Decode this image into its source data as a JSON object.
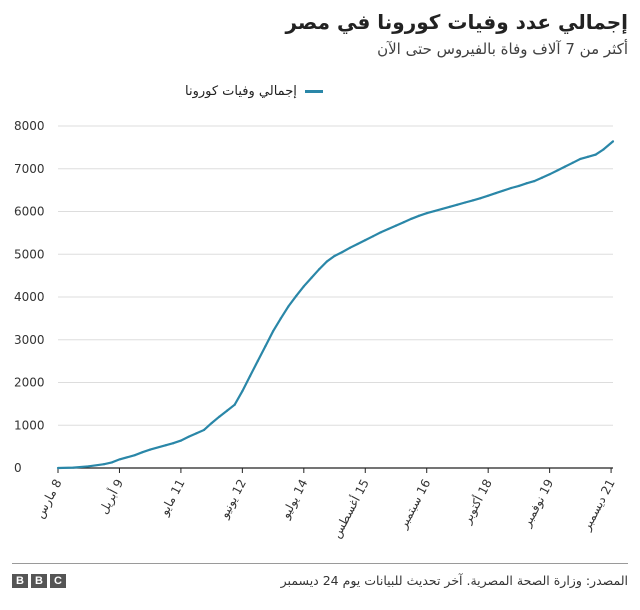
{
  "header": {
    "title": "إجمالي عدد وفيات كورونا في مصر",
    "subtitle": "أكثر من 7 آلاف وفاة بالفيروس حتى الآن"
  },
  "legend": {
    "label": "إجمالي وفيات كورونا"
  },
  "colors": {
    "series": "#2a87a8",
    "axis": "#222222",
    "grid": "#dddddd",
    "logo": "#555555"
  },
  "chart_data": {
    "type": "line",
    "title": "إجمالي عدد وفيات كورونا في مصر",
    "xlabel": "",
    "ylabel": "",
    "ylim": [
      0,
      8000
    ],
    "xlim": [
      0,
      289
    ],
    "yticks": [
      0,
      1000,
      2000,
      3000,
      4000,
      5000,
      6000,
      7000,
      8000
    ],
    "xticks": [
      {
        "day": 0,
        "label": "8 مارس"
      },
      {
        "day": 32,
        "label": "9 أبريل"
      },
      {
        "day": 64,
        "label": "11 مايو"
      },
      {
        "day": 96,
        "label": "12 يونيو"
      },
      {
        "day": 128,
        "label": "14 يوليو"
      },
      {
        "day": 160,
        "label": "15 أغسطس"
      },
      {
        "day": 192,
        "label": "16 سبتمبر"
      },
      {
        "day": 224,
        "label": "18 أكتوبر"
      },
      {
        "day": 256,
        "label": "19 نوفمبر"
      },
      {
        "day": 288,
        "label": "21 ديسمبر"
      }
    ],
    "series": [
      {
        "name": "إجمالي وفيات كورونا",
        "x": [
          0,
          8,
          16,
          24,
          28,
          32,
          40,
          44,
          48,
          56,
          60,
          64,
          68,
          72,
          76,
          80,
          84,
          88,
          92,
          96,
          100,
          104,
          108,
          112,
          116,
          120,
          124,
          128,
          132,
          136,
          140,
          144,
          148,
          152,
          156,
          160,
          164,
          168,
          172,
          176,
          180,
          184,
          188,
          192,
          196,
          200,
          204,
          208,
          212,
          216,
          220,
          224,
          228,
          232,
          236,
          240,
          244,
          248,
          252,
          256,
          260,
          264,
          268,
          272,
          276,
          280,
          284,
          289
        ],
        "values": [
          0,
          10,
          40,
          90,
          130,
          200,
          300,
          370,
          430,
          530,
          580,
          640,
          730,
          810,
          890,
          1050,
          1200,
          1340,
          1480,
          1800,
          2150,
          2500,
          2850,
          3200,
          3500,
          3780,
          4020,
          4250,
          4450,
          4650,
          4830,
          4960,
          5050,
          5150,
          5240,
          5330,
          5420,
          5510,
          5590,
          5670,
          5750,
          5830,
          5900,
          5960,
          6010,
          6060,
          6110,
          6160,
          6210,
          6260,
          6310,
          6370,
          6430,
          6490,
          6550,
          6600,
          6660,
          6710,
          6790,
          6870,
          6960,
          7050,
          7140,
          7230,
          7280,
          7330,
          7450,
          7640
        ]
      }
    ]
  },
  "footer": {
    "source": "المصدر: وزارة الصحة المصرية. آخر تحديث للبيانات يوم 24 ديسمبر",
    "logo_letters": [
      "B",
      "B",
      "C"
    ]
  }
}
